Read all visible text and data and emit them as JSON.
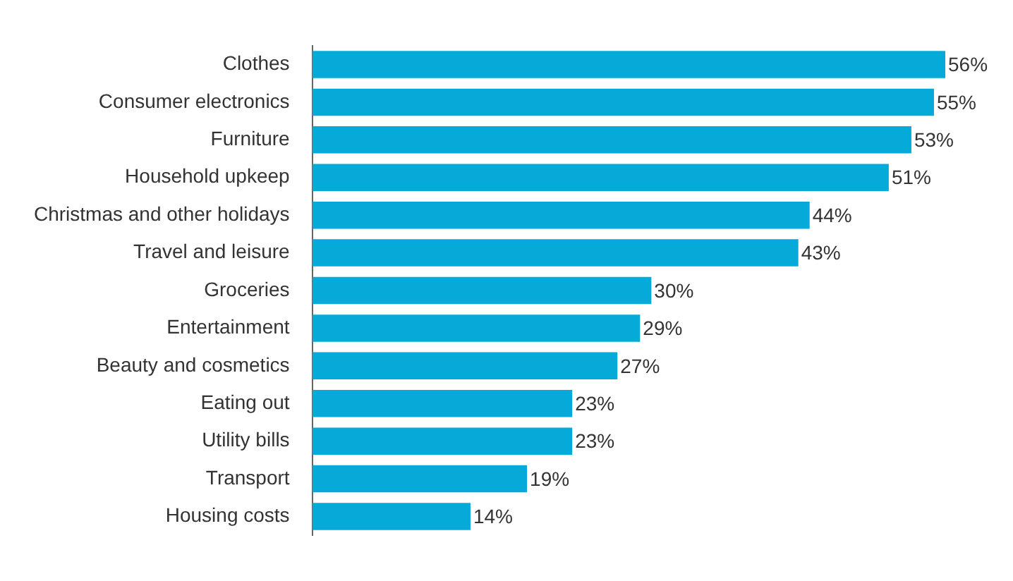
{
  "chart_data": {
    "type": "bar",
    "orientation": "horizontal",
    "categories": [
      "Clothes",
      "Consumer electronics",
      "Furniture",
      "Household upkeep",
      "Christmas and other holidays",
      "Travel and leisure",
      "Groceries",
      "Entertainment",
      "Beauty and cosmetics",
      "Eating out",
      "Utility bills",
      "Transport",
      "Housing costs"
    ],
    "values": [
      56,
      55,
      53,
      51,
      44,
      43,
      30,
      29,
      27,
      23,
      23,
      19,
      14
    ],
    "value_labels": [
      "56%",
      "55%",
      "53%",
      "51%",
      "44%",
      "43%",
      "30%",
      "29%",
      "27%",
      "23%",
      "23%",
      "19%",
      "14%"
    ],
    "color": "#05aad9",
    "grid": false,
    "legend": false,
    "tick_labels": "y"
  }
}
